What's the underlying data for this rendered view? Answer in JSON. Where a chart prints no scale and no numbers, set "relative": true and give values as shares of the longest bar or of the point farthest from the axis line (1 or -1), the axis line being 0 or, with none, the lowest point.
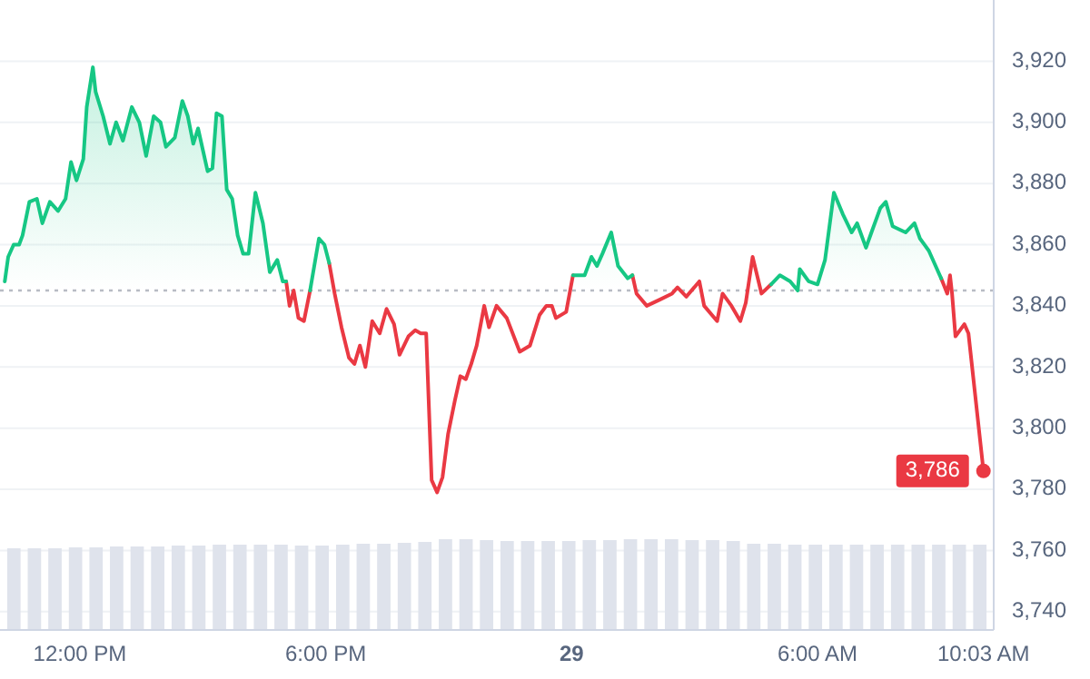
{
  "chart_data": [
    {
      "type": "line",
      "xlim": [
        "--05-28T10:03",
        "--05-29T10:18"
      ],
      "ylim": [
        3734,
        3940
      ],
      "xticks": [
        {
          "value": "--05-28T12:00",
          "label": "12:00 PM"
        },
        {
          "value": "--05-28T18:00",
          "label": "6:00 PM"
        },
        {
          "value": "--05-29T00:00",
          "label": "29"
        },
        {
          "value": "--05-29T06:00",
          "label": "6:00 AM"
        },
        {
          "value": "--05-29T10:03",
          "label": "10:03 AM"
        }
      ],
      "yticks": [
        {
          "value": 3740,
          "label": "3,740"
        },
        {
          "value": 3760,
          "label": "3,760"
        },
        {
          "value": 3780,
          "label": "3,780"
        },
        {
          "value": 3800,
          "label": "3,800"
        },
        {
          "value": 3820,
          "label": "3,820"
        },
        {
          "value": 3840,
          "label": "3,840"
        },
        {
          "value": 3860,
          "label": "3,860"
        },
        {
          "value": 3880,
          "label": "3,880"
        },
        {
          "value": 3900,
          "label": "3,900"
        },
        {
          "value": 3920,
          "label": "3,920"
        }
      ],
      "grid": "y",
      "ref_lines": [
        {
          "axis": "y",
          "value": 3845,
          "color": "#b8bcc4",
          "line_style": "dotted"
        }
      ],
      "annotations": [
        {
          "text": "3,786",
          "x": "--05-29T10:03",
          "y": 3786
        }
      ],
      "x": [
        "--05-28T10:10",
        "--05-28T10:15",
        "--05-28T10:23",
        "--05-28T10:31",
        "--05-28T10:36",
        "--05-28T10:46",
        "--05-28T10:57",
        "--05-28T11:05",
        "--05-28T11:16",
        "--05-28T11:28",
        "--05-28T11:39",
        "--05-28T11:47",
        "--05-28T11:55",
        "--05-28T12:05",
        "--05-28T12:10",
        "--05-28T12:19",
        "--05-28T12:23",
        "--05-28T12:34",
        "--05-28T12:44",
        "--05-28T12:53",
        "--05-28T13:03",
        "--05-28T13:16",
        "--05-28T13:27",
        "--05-28T13:37",
        "--05-28T13:48",
        "--05-28T13:58",
        "--05-28T14:06",
        "--05-28T14:19",
        "--05-28T14:30",
        "--05-28T14:38",
        "--05-28T14:46",
        "--05-28T14:53",
        "--05-28T15:01",
        "--05-28T15:07",
        "--05-28T15:14",
        "--05-28T15:20",
        "--05-28T15:28",
        "--05-28T15:35",
        "--05-28T15:43",
        "--05-28T15:51",
        "--05-28T15:59",
        "--05-28T16:07",
        "--05-28T16:17",
        "--05-28T16:28",
        "--05-28T16:38",
        "--05-28T16:49",
        "--05-28T16:57",
        "--05-28T17:02",
        "--05-28T17:07",
        "--05-28T17:13",
        "--05-28T17:20",
        "--05-28T17:28",
        "--05-28T17:37",
        "--05-28T17:50",
        "--05-28T17:58",
        "--05-28T18:05",
        "--05-28T18:13",
        "--05-28T18:23",
        "--05-28T18:34",
        "--05-28T18:42",
        "--05-28T18:50",
        "--05-28T18:58",
        "--05-28T19:08",
        "--05-28T19:19",
        "--05-28T19:29",
        "--05-28T19:40",
        "--05-28T19:48",
        "--05-28T20:01",
        "--05-28T20:11",
        "--05-28T20:19",
        "--05-28T20:27",
        "--05-28T20:35",
        "--05-28T20:43",
        "--05-28T20:51",
        "--05-28T20:59",
        "--05-28T21:09",
        "--05-28T21:17",
        "--05-28T21:25",
        "--05-28T21:33",
        "--05-28T21:41",
        "--05-28T21:52",
        "--05-28T21:59",
        "--05-28T22:10",
        "--05-28T22:25",
        "--05-28T22:44",
        "--05-28T22:59",
        "--05-28T23:13",
        "--05-28T23:23",
        "--05-28T23:31",
        "--05-28T23:37",
        "--05-28T23:52",
        "--05-29T00:02",
        "--05-29T00:19",
        "--05-29T00:29",
        "--05-29T00:37",
        "--05-29T00:45",
        "--05-29T00:58",
        "--05-29T01:08",
        "--05-29T01:22",
        "--05-29T01:29",
        "--05-29T01:35",
        "--05-29T01:50",
        "--05-29T02:09",
        "--05-29T02:27",
        "--05-29T02:35",
        "--05-29T02:48",
        "--05-29T03:07",
        "--05-29T03:14",
        "--05-29T03:33",
        "--05-29T03:41",
        "--05-29T03:54",
        "--05-29T04:07",
        "--05-29T04:15",
        "--05-29T04:25",
        "--05-29T04:38",
        "--05-29T04:52",
        "--05-29T05:05",
        "--05-29T05:20",
        "--05-29T05:31",
        "--05-29T05:34",
        "--05-29T05:47",
        "--05-29T06:00",
        "--05-29T06:11",
        "--05-29T06:24",
        "--05-29T06:37",
        "--05-29T06:50",
        "--05-29T06:58",
        "--05-29T07:11",
        "--05-29T07:19",
        "--05-29T07:32",
        "--05-29T07:40",
        "--05-29T07:50",
        "--05-29T08:09",
        "--05-29T08:22",
        "--05-29T08:30",
        "--05-29T08:43",
        "--05-29T08:51",
        "--05-29T09:01",
        "--05-29T09:10",
        "--05-29T09:14",
        "--05-29T09:17",
        "--05-29T09:22",
        "--05-29T09:35",
        "--05-29T09:41",
        "--05-29T10:03"
      ],
      "series": [
        {
          "color": "#ea3943",
          "values": [
            null,
            null,
            null,
            null,
            null,
            null,
            null,
            null,
            null,
            null,
            null,
            null,
            null,
            null,
            null,
            null,
            null,
            null,
            null,
            null,
            null,
            null,
            null,
            null,
            null,
            null,
            null,
            null,
            null,
            null,
            null,
            null,
            null,
            null,
            null,
            null,
            null,
            null,
            null,
            null,
            null,
            null,
            null,
            null,
            null,
            null,
            null,
            3848,
            3840,
            3845,
            3836,
            3835,
            3845,
            null,
            null,
            3854,
            3844,
            3833,
            3823,
            3821,
            3827,
            3820,
            3835,
            3831,
            3839,
            3834,
            3824,
            3830,
            3832,
            3831,
            3831,
            3783,
            3779,
            3784,
            3798,
            3809,
            3817,
            3816,
            3821,
            3827,
            3840,
            3833,
            3840,
            3836,
            3825,
            3827,
            3837,
            3840,
            3840,
            3836,
            3838,
            3850,
            null,
            null,
            null,
            null,
            null,
            null,
            null,
            3850,
            3844,
            3840,
            3842,
            3844,
            3846,
            3843,
            3848,
            3840,
            3835,
            3844,
            3840,
            3835,
            3841,
            3856,
            3844,
            3847,
            null,
            null,
            null,
            null,
            null,
            null,
            null,
            null,
            null,
            null,
            null,
            null,
            null,
            null,
            null,
            null,
            null,
            null,
            null,
            null,
            null,
            3849,
            3844,
            3850,
            3844,
            3830,
            3834,
            3831,
            3786
          ]
        },
        {
          "type": "area",
          "color": "#16c784",
          "values": [
            3848,
            3856,
            3860,
            3860,
            3863,
            3874,
            3875,
            3867,
            3874,
            3871,
            3875,
            3887,
            3881,
            3888,
            3905,
            3918,
            3910,
            3902,
            3893,
            3900,
            3894,
            3905,
            3900,
            3889,
            3902,
            3900,
            3892,
            3895,
            3907,
            3902,
            3893,
            3898,
            3890,
            3884,
            3885,
            3903,
            3902,
            3878,
            3875,
            3863,
            3857,
            3857,
            3877,
            3867,
            3851,
            3855,
            3848,
            3848,
            null,
            null,
            null,
            null,
            3845,
            3862,
            3860,
            3854,
            null,
            null,
            null,
            null,
            null,
            null,
            null,
            null,
            null,
            null,
            null,
            null,
            null,
            null,
            null,
            null,
            null,
            null,
            null,
            null,
            null,
            null,
            null,
            null,
            null,
            null,
            null,
            null,
            null,
            null,
            null,
            null,
            null,
            null,
            null,
            3850,
            3850,
            3856,
            3853,
            3857,
            3864,
            3853,
            3849,
            3850,
            null,
            null,
            null,
            null,
            null,
            null,
            null,
            null,
            null,
            null,
            null,
            null,
            null,
            null,
            null,
            3847,
            3850,
            3848,
            3845,
            3852,
            3848,
            3847,
            3855,
            3877,
            3870,
            3864,
            3867,
            3859,
            3864,
            3872,
            3874,
            3866,
            3864,
            3867,
            3862,
            3858,
            3854,
            3849,
            null,
            null,
            null,
            null,
            null,
            null,
            null
          ]
        }
      ]
    },
    {
      "type": "bar",
      "relative": true,
      "color": "#dfe3ec",
      "categories": [
        null,
        null,
        null,
        null,
        null,
        null,
        null,
        null,
        null,
        null,
        null,
        null,
        null,
        null,
        null,
        null,
        null,
        null,
        null,
        null,
        null,
        null,
        null,
        null,
        null,
        null,
        null,
        null,
        null,
        null,
        null,
        null,
        null,
        null,
        null,
        null,
        null,
        null,
        null,
        null,
        null,
        null,
        null,
        null,
        null,
        null,
        null,
        null
      ],
      "values": [
        0.9,
        0.9,
        0.9,
        0.91,
        0.91,
        0.92,
        0.92,
        0.92,
        0.93,
        0.93,
        0.94,
        0.94,
        0.94,
        0.94,
        0.93,
        0.93,
        0.94,
        0.95,
        0.95,
        0.96,
        0.97,
        1,
        1,
        0.99,
        0.98,
        0.98,
        0.98,
        0.98,
        0.99,
        0.99,
        1,
        1,
        1,
        0.99,
        0.99,
        0.98,
        0.95,
        0.95,
        0.94,
        0.94,
        0.94,
        0.94,
        0.94,
        0.94,
        0.94,
        0.94,
        0.94,
        0.94
      ]
    }
  ]
}
